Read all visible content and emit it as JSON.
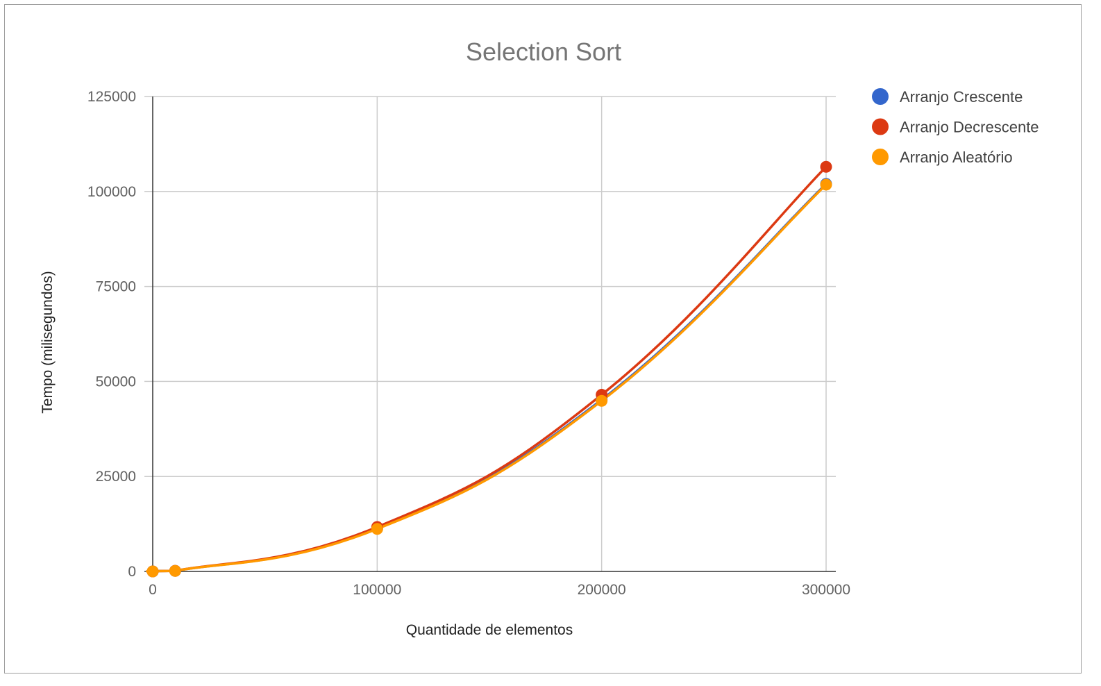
{
  "chart_data": {
    "type": "line",
    "title": "Selection Sort",
    "xlabel": "Quantidade de elementos",
    "ylabel": "Tempo (milisegundos)",
    "xlim": [
      0,
      300000
    ],
    "ylim": [
      0,
      125000
    ],
    "xticks": [
      0,
      100000,
      200000,
      300000
    ],
    "yticks": [
      0,
      25000,
      50000,
      75000,
      100000,
      125000
    ],
    "grid": true,
    "legend_position": "right",
    "series": [
      {
        "name": "Arranjo Crescente",
        "color": "#3366cc",
        "x": [
          0,
          10000,
          100000,
          200000,
          300000
        ],
        "y": [
          0,
          150,
          11300,
          45200,
          102000
        ]
      },
      {
        "name": "Arranjo Decrescente",
        "color": "#dc3912",
        "x": [
          0,
          10000,
          100000,
          200000,
          300000
        ],
        "y": [
          0,
          160,
          11700,
          46500,
          106500
        ]
      },
      {
        "name": "Arranjo Aleatório",
        "color": "#ff9900",
        "x": [
          0,
          10000,
          100000,
          200000,
          300000
        ],
        "y": [
          0,
          140,
          11200,
          44900,
          101800
        ]
      }
    ]
  }
}
